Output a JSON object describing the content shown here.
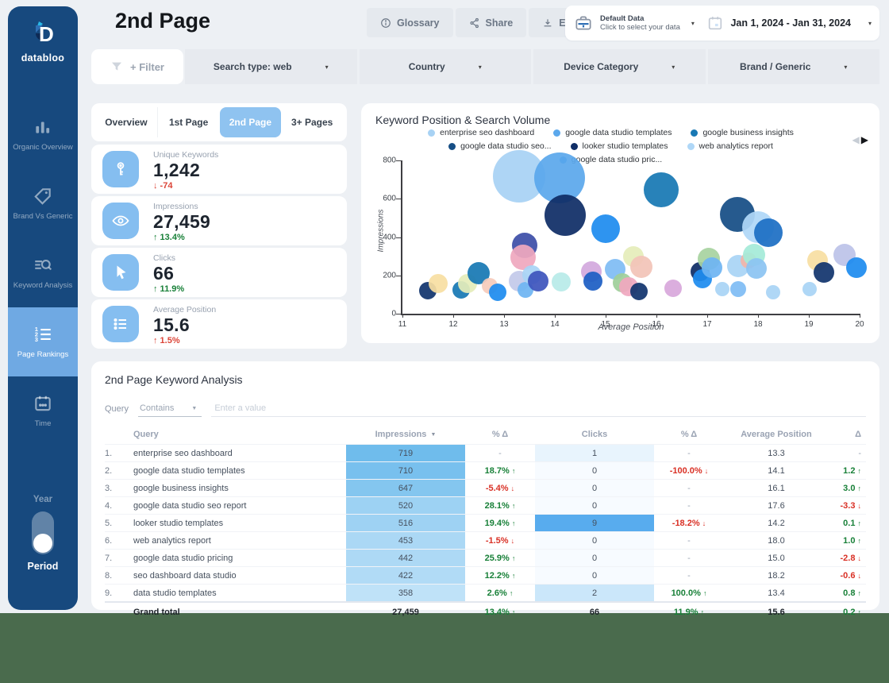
{
  "colors": {
    "sidebar_bg": "#17497E",
    "sidebar_active": "#6FA9E3",
    "accent_blue": "#8FC3F0",
    "kpi_icon_bg": "#85BEF0",
    "app_bg": "#EDF0F4",
    "desktop_bg": "#4A6B4D",
    "positive": "#188038",
    "negative": "#D93025"
  },
  "sidebar": {
    "logo_text": "databloo",
    "items": [
      {
        "label": "Organic Overview",
        "icon": "bar-chart-icon",
        "active": false
      },
      {
        "label": "Brand Vs Generic",
        "icon": "tag-icon",
        "active": false
      },
      {
        "label": "Keyword Analysis",
        "icon": "keyword-search-icon",
        "active": false
      },
      {
        "label": "Page Rankings",
        "icon": "numbered-list-icon",
        "active": true
      },
      {
        "label": "Time",
        "icon": "calendar-icon",
        "active": false
      }
    ],
    "toggle": {
      "top_label": "Year",
      "bottom_label": "Period",
      "selected": "Period"
    }
  },
  "header": {
    "title": "2nd Page",
    "buttons": [
      {
        "label": "Glossary",
        "icon": "info-icon"
      },
      {
        "label": "Share",
        "icon": "share-icon"
      },
      {
        "label": "Export",
        "icon": "download-icon"
      }
    ],
    "data_panel": {
      "source_title": "Default Data",
      "source_subtitle": "Click to select your data",
      "date_range": "Jan 1, 2024 - Jan 31, 2024"
    }
  },
  "filters": {
    "add_label": "+ Filter",
    "dropdowns": [
      "Search type: web",
      "Country",
      "Device Category",
      "Brand / Generic"
    ]
  },
  "tabs": [
    {
      "label": "Overview",
      "active": false
    },
    {
      "label": "1st Page",
      "active": false
    },
    {
      "label": "2nd Page",
      "active": true
    },
    {
      "label": "3+ Pages",
      "active": false
    }
  ],
  "kpis": [
    {
      "label": "Unique Keywords",
      "value": "1,242",
      "delta": "-74",
      "arrow": "down",
      "delta_color": "red",
      "icon": "key-icon"
    },
    {
      "label": "Impressions",
      "value": "27,459",
      "delta": "13.4%",
      "arrow": "up",
      "delta_color": "green",
      "icon": "eye-icon"
    },
    {
      "label": "Clicks",
      "value": "66",
      "delta": "11.9%",
      "arrow": "up",
      "delta_color": "green",
      "icon": "cursor-icon"
    },
    {
      "label": "Average Position",
      "value": "15.6",
      "delta": "1.5%",
      "arrow": "up",
      "delta_color": "red",
      "icon": "list-icon"
    }
  ],
  "chart": {
    "title": "Keyword Position & Search Volume",
    "xlabel": "Average Position",
    "ylabel": "Impressions",
    "pagination": {
      "prev_enabled": false,
      "next_enabled": true
    }
  },
  "chart_data": {
    "type": "bubble",
    "title": "Keyword Position & Search Volume",
    "xlabel": "Average Position",
    "ylabel": "Impressions",
    "xlim": [
      11,
      20
    ],
    "ylim": [
      0,
      800
    ],
    "x_ticks": [
      11,
      12,
      13,
      14,
      15,
      16,
      17,
      18,
      19,
      20
    ],
    "y_ticks": [
      0,
      200,
      400,
      600,
      800
    ],
    "grid": false,
    "legend_position": "top",
    "legend": [
      {
        "label": "enterprise seo dashboard",
        "color": "#A8D2F4"
      },
      {
        "label": "google data studio templates",
        "color": "#5BA8EC"
      },
      {
        "label": "google business insights",
        "color": "#1878B4"
      },
      {
        "label": "google data studio seo...",
        "color": "#164E85"
      },
      {
        "label": "looker studio templates",
        "color": "#0F2D66"
      },
      {
        "label": "web analytics report",
        "color": "#AFD7F7"
      },
      {
        "label": "google data studio pric...",
        "color": "#1E8CEF"
      }
    ],
    "bubbles": [
      {
        "label": "enterprise seo dashboard",
        "x": 13.3,
        "y": 719,
        "r": 33,
        "color": "#A8D2F4"
      },
      {
        "label": "google data studio templates",
        "x": 14.1,
        "y": 710,
        "r": 32,
        "color": "#5BA8EC"
      },
      {
        "label": "google business insights",
        "x": 16.1,
        "y": 647,
        "r": 22,
        "color": "#1878B4"
      },
      {
        "label": "google data studio seo report",
        "x": 17.6,
        "y": 520,
        "r": 22,
        "color": "#164E85"
      },
      {
        "label": "looker studio templates",
        "x": 14.2,
        "y": 516,
        "r": 26,
        "color": "#0F2D66"
      },
      {
        "label": "web analytics report",
        "x": 18.0,
        "y": 453,
        "r": 20,
        "color": "#AFD7F7"
      },
      {
        "label": "google data studio pricing",
        "x": 15.0,
        "y": 442,
        "r": 18,
        "color": "#1E8CEF"
      },
      {
        "label": "seo dashboard data studio",
        "x": 18.2,
        "y": 422,
        "r": 18,
        "color": "#1D6FC4"
      },
      {
        "label": "data studio templates",
        "x": 13.4,
        "y": 358,
        "r": 16,
        "color": "#3D4FA8"
      },
      {
        "x": 11.5,
        "y": 120,
        "r": 11,
        "color": "#12356E"
      },
      {
        "x": 11.7,
        "y": 158,
        "r": 12,
        "color": "#F8DFA2"
      },
      {
        "x": 12.15,
        "y": 125,
        "r": 11,
        "color": "#1878B4"
      },
      {
        "x": 12.28,
        "y": 158,
        "r": 12,
        "color": "#E5EDBA"
      },
      {
        "x": 12.5,
        "y": 210,
        "r": 14,
        "color": "#1878B4"
      },
      {
        "x": 12.72,
        "y": 145,
        "r": 10,
        "color": "#F6CBBB"
      },
      {
        "x": 12.87,
        "y": 112,
        "r": 11,
        "color": "#1E8CEF"
      },
      {
        "x": 13.37,
        "y": 295,
        "r": 16,
        "color": "#EFA8BE"
      },
      {
        "x": 13.3,
        "y": 170,
        "r": 13,
        "color": "#C3C9EA"
      },
      {
        "x": 13.42,
        "y": 125,
        "r": 10,
        "color": "#6FB5F2"
      },
      {
        "x": 13.55,
        "y": 205,
        "r": 12,
        "color": "#A9D4F5"
      },
      {
        "x": 13.67,
        "y": 172,
        "r": 13,
        "color": "#3E55BC"
      },
      {
        "x": 14.12,
        "y": 168,
        "r": 12,
        "color": "#B8EBE8"
      },
      {
        "x": 14.72,
        "y": 220,
        "r": 13,
        "color": "#D3A9DE"
      },
      {
        "x": 14.75,
        "y": 170,
        "r": 12,
        "color": "#1D5FC4"
      },
      {
        "x": 15.18,
        "y": 232,
        "r": 13,
        "color": "#7FBCF4"
      },
      {
        "x": 15.55,
        "y": 300,
        "r": 13,
        "color": "#E5EDBA"
      },
      {
        "x": 15.7,
        "y": 245,
        "r": 14,
        "color": "#F2C4B8"
      },
      {
        "x": 15.33,
        "y": 162,
        "r": 12,
        "color": "#9FCF9A"
      },
      {
        "x": 15.45,
        "y": 140,
        "r": 12,
        "color": "#F0A8C0"
      },
      {
        "x": 15.65,
        "y": 115,
        "r": 11,
        "color": "#12356E"
      },
      {
        "x": 16.33,
        "y": 132,
        "r": 11,
        "color": "#D8A8DC"
      },
      {
        "x": 16.86,
        "y": 218,
        "r": 12,
        "color": "#0F2D66"
      },
      {
        "x": 16.9,
        "y": 182,
        "r": 12,
        "color": "#1E8CEF"
      },
      {
        "x": 17.03,
        "y": 287,
        "r": 14,
        "color": "#A8D3A0"
      },
      {
        "x": 17.1,
        "y": 240,
        "r": 13,
        "color": "#6FB5F2"
      },
      {
        "x": 17.3,
        "y": 128,
        "r": 9,
        "color": "#A9D4F5"
      },
      {
        "x": 17.61,
        "y": 247,
        "r": 14,
        "color": "#A9D4F5"
      },
      {
        "x": 17.61,
        "y": 128,
        "r": 10,
        "color": "#7FBCF4"
      },
      {
        "x": 17.81,
        "y": 280,
        "r": 10,
        "color": "#F2B5A8"
      },
      {
        "x": 17.92,
        "y": 308,
        "r": 14,
        "color": "#A5EBD8"
      },
      {
        "x": 17.97,
        "y": 238,
        "r": 13,
        "color": "#8CC4F2"
      },
      {
        "x": 18.3,
        "y": 112,
        "r": 9,
        "color": "#A9D4F5"
      },
      {
        "x": 19.02,
        "y": 128,
        "r": 9,
        "color": "#A9D4F5"
      },
      {
        "x": 19.17,
        "y": 276,
        "r": 13,
        "color": "#F8DFA2"
      },
      {
        "x": 19.3,
        "y": 214,
        "r": 13,
        "color": "#12356E"
      },
      {
        "x": 19.7,
        "y": 308,
        "r": 14,
        "color": "#BCC3E8"
      },
      {
        "x": 19.93,
        "y": 240,
        "r": 13,
        "color": "#1E8CEF"
      }
    ]
  },
  "table": {
    "title": "2nd Page Keyword Analysis",
    "filter": {
      "field_label": "Query",
      "operator": "Contains",
      "placeholder": "Enter a value"
    },
    "headers": [
      "Query",
      "Impressions",
      "% Δ",
      "Clicks",
      "% Δ",
      "Average Position",
      "Δ"
    ],
    "sorted_by": "Impressions",
    "rows": [
      {
        "n": "1.",
        "q": "enterprise seo dashboard",
        "imp": "719",
        "imp_bg": "#6FBCEC",
        "imp_delta": {
          "t": "-"
        },
        "clk": "1",
        "clk_bg": "#E8F4FD",
        "clk_delta": {
          "t": "-"
        },
        "avg": "13.3",
        "pos_delta": {
          "t": "-"
        }
      },
      {
        "n": "2.",
        "q": "google data studio templates",
        "imp": "710",
        "imp_bg": "#78C0EE",
        "imp_delta": {
          "t": "18.7%",
          "dir": "up",
          "col": "g"
        },
        "clk": "0",
        "clk_bg": "#F7FBFF",
        "clk_delta": {
          "t": "-100.0%",
          "dir": "down",
          "col": "r"
        },
        "avg": "14.1",
        "pos_delta": {
          "t": "1.2",
          "dir": "up",
          "col": "g"
        }
      },
      {
        "n": "3.",
        "q": "google business insights",
        "imp": "647",
        "imp_bg": "#84C6EF",
        "imp_delta": {
          "t": "-5.4%",
          "dir": "down",
          "col": "r"
        },
        "clk": "0",
        "clk_bg": "#F7FBFF",
        "clk_delta": {
          "t": "-"
        },
        "avg": "16.1",
        "pos_delta": {
          "t": "3.0",
          "dir": "up",
          "col": "g"
        }
      },
      {
        "n": "4.",
        "q": "google data studio seo report",
        "imp": "520",
        "imp_bg": "#9DD2F3",
        "imp_delta": {
          "t": "28.1%",
          "dir": "up",
          "col": "g"
        },
        "clk": "0",
        "clk_bg": "#F7FBFF",
        "clk_delta": {
          "t": "-"
        },
        "avg": "17.6",
        "pos_delta": {
          "t": "-3.3",
          "dir": "down",
          "col": "r"
        }
      },
      {
        "n": "5.",
        "q": "looker studio templates",
        "imp": "516",
        "imp_bg": "#9ED2F3",
        "imp_delta": {
          "t": "19.4%",
          "dir": "up",
          "col": "g"
        },
        "clk": "9",
        "clk_bg": "#58ACEE",
        "clk_delta": {
          "t": "-18.2%",
          "dir": "down",
          "col": "r"
        },
        "avg": "14.2",
        "pos_delta": {
          "t": "0.1",
          "dir": "up",
          "col": "g"
        }
      },
      {
        "n": "6.",
        "q": "web analytics report",
        "imp": "453",
        "imp_bg": "#ABD8F5",
        "imp_delta": {
          "t": "-1.5%",
          "dir": "down",
          "col": "r"
        },
        "clk": "0",
        "clk_bg": "#F7FBFF",
        "clk_delta": {
          "t": "-"
        },
        "avg": "18.0",
        "pos_delta": {
          "t": "1.0",
          "dir": "up",
          "col": "g"
        }
      },
      {
        "n": "7.",
        "q": "google data studio pricing",
        "imp": "442",
        "imp_bg": "#ADD9F5",
        "imp_delta": {
          "t": "25.9%",
          "dir": "up",
          "col": "g"
        },
        "clk": "0",
        "clk_bg": "#F7FBFF",
        "clk_delta": {
          "t": "-"
        },
        "avg": "15.0",
        "pos_delta": {
          "t": "-2.8",
          "dir": "down",
          "col": "r"
        }
      },
      {
        "n": "8.",
        "q": "seo dashboard data studio",
        "imp": "422",
        "imp_bg": "#B1DBF6",
        "imp_delta": {
          "t": "12.2%",
          "dir": "up",
          "col": "g"
        },
        "clk": "0",
        "clk_bg": "#F7FBFF",
        "clk_delta": {
          "t": "-"
        },
        "avg": "18.2",
        "pos_delta": {
          "t": "-0.6",
          "dir": "down",
          "col": "r"
        }
      },
      {
        "n": "9.",
        "q": "data studio templates",
        "imp": "358",
        "imp_bg": "#BFE2F8",
        "imp_delta": {
          "t": "2.6%",
          "dir": "up",
          "col": "g"
        },
        "clk": "2",
        "clk_bg": "#CBE7FA",
        "clk_delta": {
          "t": "100.0%",
          "dir": "up",
          "col": "g"
        },
        "avg": "13.4",
        "pos_delta": {
          "t": "0.8",
          "dir": "up",
          "col": "g"
        }
      }
    ],
    "grand_total": {
      "label": "Grand total",
      "imp": "27,459",
      "imp_delta": {
        "t": "13.4%",
        "dir": "up",
        "col": "g"
      },
      "clk": "66",
      "clk_delta": {
        "t": "11.9%",
        "dir": "up",
        "col": "g"
      },
      "avg": "15.6",
      "pos_delta": {
        "t": "0.2",
        "dir": "up",
        "col": "g"
      }
    }
  }
}
